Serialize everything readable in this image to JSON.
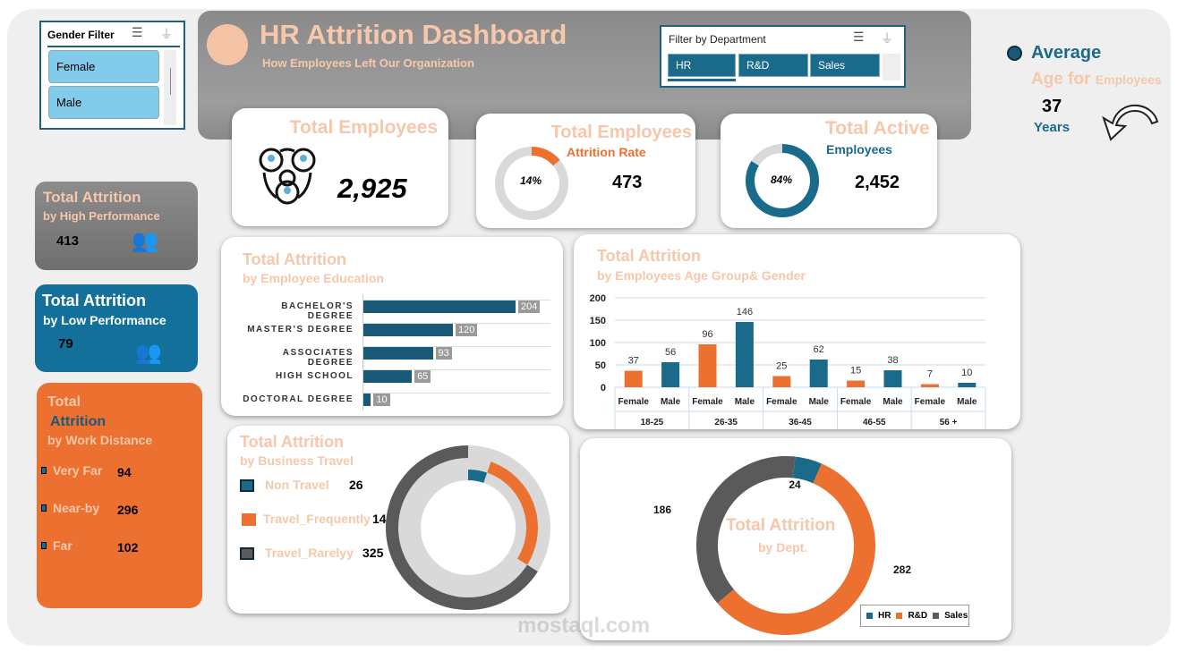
{
  "gender_filter": {
    "title": "Gender Filter",
    "items": [
      "Female",
      "Male"
    ]
  },
  "header": {
    "title": "HR Attrition Dashboard",
    "subtitle": "How Employees Left Our Organization"
  },
  "dept_filter": {
    "title": "Filter by Department",
    "items": [
      "HR",
      "R&D",
      "Sales"
    ]
  },
  "avg_age": {
    "label1": "Average",
    "label2": "Age for",
    "label3": "Employees",
    "value": "37",
    "unit": "Years"
  },
  "kpi": {
    "total_employees": {
      "title": "Total Employees",
      "value": "2,925"
    },
    "attrition": {
      "title": "Total Employees",
      "subtitle": "Attrition Rate",
      "percent_label": "14%",
      "percent": 14,
      "value": "473"
    },
    "active": {
      "title": "Total Active",
      "subtitle": "Employees",
      "percent_label": "84%",
      "percent": 84,
      "value": "2,452"
    }
  },
  "high_perf": {
    "title": "Total Attrition",
    "subtitle": "by High Performance",
    "value": "413"
  },
  "low_perf": {
    "title": "Total Attrition",
    "subtitle": "by Low Performance",
    "value": "79"
  },
  "distance": {
    "title1": "Total",
    "title2": "Attrition",
    "subtitle": "by Work Distance",
    "items": [
      {
        "label": "Very Far",
        "value": "94"
      },
      {
        "label": "Near-by",
        "value": "296"
      },
      {
        "label": "Far",
        "value": "102"
      }
    ]
  },
  "colors": {
    "orange": "#ec7130",
    "blue": "#1a6a8c",
    "gray": "#5a5a5a",
    "light": "#d9d9d9",
    "peach": "#f6c7aa"
  },
  "chart_data": [
    {
      "type": "bar",
      "orientation": "horizontal",
      "title": "Total Attrition",
      "subtitle": "by Employee Education",
      "categories": [
        "BACHELOR'S DEGREE",
        "MASTER'S DEGREE",
        "ASSOCIATES DEGREE",
        "HIGH SCHOOL",
        "DOCTORAL DEGREE"
      ],
      "values": [
        204,
        120,
        93,
        65,
        10
      ]
    },
    {
      "type": "bar",
      "title": "Total Attrition",
      "subtitle": "by Employees Age Group& Gender",
      "ylim": [
        0,
        200
      ],
      "yticks": [
        "0",
        "50",
        "100",
        "150",
        "200"
      ],
      "grid": true,
      "groups": [
        "18-25",
        "26-35",
        "36-45",
        "46-55",
        "56 +"
      ],
      "series": [
        {
          "name": "Female",
          "values": [
            37,
            96,
            25,
            15,
            7
          ]
        },
        {
          "name": "Male",
          "values": [
            56,
            146,
            62,
            38,
            10
          ]
        }
      ]
    },
    {
      "type": "pie",
      "variant": "multi-ring donut",
      "title": "Total Attrition",
      "subtitle": "by Business Travel",
      "categories": [
        "Non Travel",
        "Travel_Frequently",
        "Travel_Rarelyy"
      ],
      "values": [
        26,
        141,
        325
      ]
    },
    {
      "type": "pie",
      "variant": "donut",
      "title": "Total Attrition",
      "subtitle": "by Dept.",
      "legend": "bottom-right",
      "categories": [
        "HR",
        "R&D",
        "Sales"
      ],
      "values": [
        24,
        282,
        186
      ]
    }
  ],
  "watermark": "mostaql.com"
}
